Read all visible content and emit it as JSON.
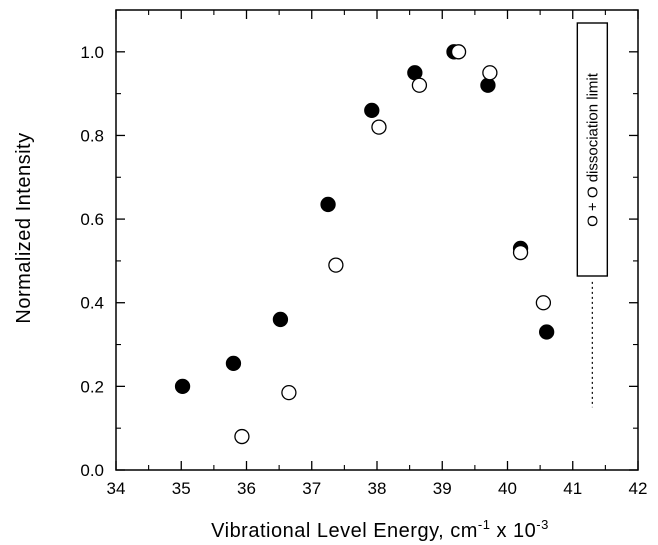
{
  "chart_data": {
    "type": "scatter",
    "xlabel": "Vibrational Level Energy, cm",
    "xlabel_exponent": "-1",
    "xlabel_suffix": " x 10",
    "xlabel_suffix_exponent": "-3",
    "ylabel": "Normalized Intensity",
    "xlim": [
      34,
      42
    ],
    "ylim": [
      0.0,
      1.1
    ],
    "x_ticks": [
      34,
      35,
      36,
      37,
      38,
      39,
      40,
      41,
      42
    ],
    "x_tick_labels": [
      "34",
      "35",
      "36",
      "37",
      "38",
      "39",
      "40",
      "41",
      "42"
    ],
    "y_ticks": [
      0.0,
      0.2,
      0.4,
      0.6,
      0.8,
      1.0
    ],
    "y_tick_labels": [
      "0.0",
      "0.2",
      "0.4",
      "0.6",
      "0.8",
      "1.0"
    ],
    "grid": false,
    "series": [
      {
        "marker": "filled-circle",
        "color": "#000000",
        "x": [
          35.02,
          35.8,
          36.52,
          37.25,
          37.92,
          38.58,
          39.18,
          39.7,
          40.2,
          40.6
        ],
        "y": [
          0.2,
          0.255,
          0.36,
          0.635,
          0.86,
          0.95,
          1.0,
          0.92,
          0.53,
          0.33
        ]
      },
      {
        "marker": "open-circle",
        "color": "#000000",
        "x": [
          35.93,
          36.65,
          37.37,
          38.03,
          38.65,
          39.25,
          39.73,
          40.2,
          40.55
        ],
        "y": [
          0.08,
          0.185,
          0.49,
          0.82,
          0.92,
          1.0,
          0.95,
          0.52,
          0.4
        ]
      }
    ],
    "annotation": {
      "text": "O + O dissociation limit",
      "x": 41.3,
      "line_y_range": [
        0.15,
        0.45
      ]
    }
  }
}
